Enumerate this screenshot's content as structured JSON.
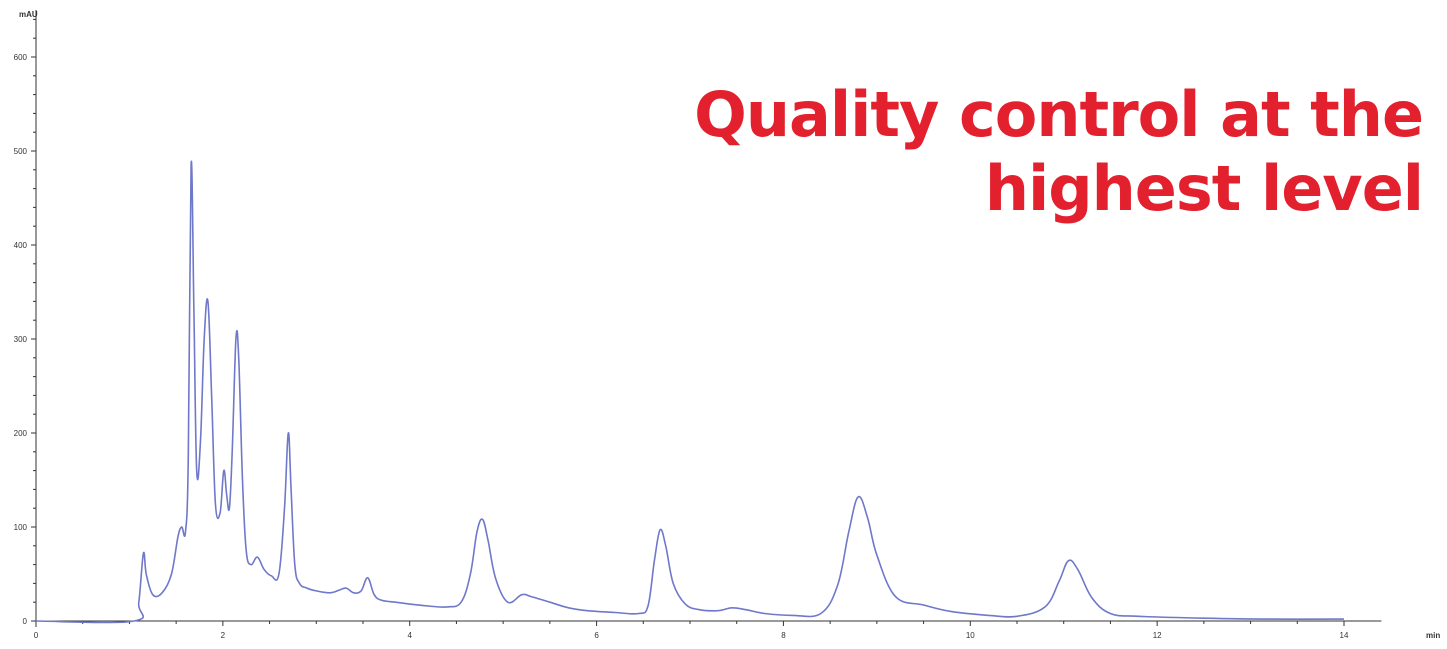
{
  "headline": {
    "line1": "Quality control at the",
    "line2": "highest level",
    "color": "#e3202d"
  },
  "chart_data": {
    "type": "line",
    "ylabel": "mAU",
    "xlabel": "min",
    "xlim": [
      0,
      14.4
    ],
    "ylim": [
      -5,
      650
    ],
    "x_ticks": [
      0,
      2,
      4,
      6,
      8,
      10,
      12,
      14
    ],
    "y_ticks": [
      0,
      100,
      200,
      300,
      400,
      500,
      600
    ],
    "grid": false,
    "line_color": "#6f78c9",
    "series": [
      {
        "x": [
          0,
          1.05,
          1.1,
          1.15,
          1.18,
          1.25,
          1.35,
          1.45,
          1.52,
          1.56,
          1.6,
          1.63,
          1.66,
          1.69,
          1.72,
          1.76,
          1.8,
          1.84,
          1.88,
          1.92,
          1.97,
          2.01,
          2.04,
          2.07,
          2.1,
          2.14,
          2.17,
          2.21,
          2.25,
          2.3,
          2.37,
          2.44,
          2.52,
          2.6,
          2.66,
          2.7,
          2.73,
          2.77,
          2.82,
          2.9,
          3.0,
          3.15,
          3.25,
          3.32,
          3.4,
          3.48,
          3.55,
          3.62,
          3.7,
          3.85,
          4.0,
          4.2,
          4.4,
          4.55,
          4.65,
          4.72,
          4.78,
          4.84,
          4.92,
          5.05,
          5.2,
          5.3,
          5.5,
          5.7,
          5.9,
          6.2,
          6.45,
          6.55,
          6.62,
          6.68,
          6.74,
          6.82,
          6.95,
          7.1,
          7.3,
          7.45,
          7.6,
          7.8,
          8.1,
          8.4,
          8.58,
          8.7,
          8.8,
          8.9,
          9.0,
          9.2,
          9.5,
          9.8,
          10.2,
          10.5,
          10.8,
          10.95,
          11.05,
          11.15,
          11.3,
          11.5,
          11.8,
          12.5,
          13.2,
          14.0
        ],
        "y": [
          0,
          0,
          20,
          72,
          50,
          28,
          30,
          50,
          90,
          100,
          95,
          175,
          485,
          330,
          160,
          190,
          300,
          340,
          240,
          125,
          115,
          160,
          135,
          120,
          180,
          300,
          280,
          150,
          75,
          60,
          68,
          55,
          48,
          50,
          120,
          200,
          140,
          60,
          40,
          35,
          32,
          30,
          33,
          35,
          30,
          32,
          46,
          28,
          22,
          20,
          18,
          16,
          15,
          20,
          50,
          95,
          108,
          85,
          45,
          20,
          28,
          26,
          20,
          14,
          11,
          9,
          8,
          16,
          65,
          97,
          80,
          40,
          18,
          12,
          11,
          14,
          12,
          8,
          6,
          8,
          38,
          95,
          132,
          110,
          70,
          26,
          17,
          10,
          6,
          5,
          15,
          42,
          64,
          55,
          25,
          8,
          5,
          3,
          2,
          2
        ]
      }
    ]
  }
}
